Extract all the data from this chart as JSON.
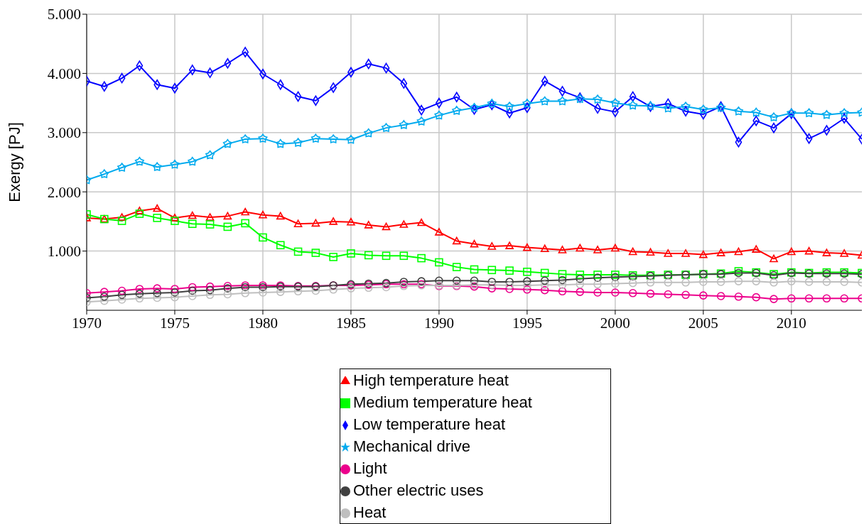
{
  "chart_data": {
    "type": "line",
    "ylabel": "Exergy [PJ]",
    "x": [
      1970,
      1971,
      1972,
      1973,
      1974,
      1975,
      1976,
      1977,
      1978,
      1979,
      1980,
      1981,
      1982,
      1983,
      1984,
      1985,
      1986,
      1987,
      1988,
      1989,
      1990,
      1991,
      1992,
      1993,
      1994,
      1995,
      1996,
      1997,
      1998,
      1999,
      2000,
      2001,
      2002,
      2003,
      2004,
      2005,
      2006,
      2007,
      2008,
      2009,
      2010,
      2011,
      2012,
      2013,
      2014
    ],
    "xlim": [
      1970,
      2014
    ],
    "xticks": [
      1970,
      1975,
      1980,
      1985,
      1990,
      1995,
      2000,
      2005,
      2010
    ],
    "ylim": [
      0,
      5000
    ],
    "yticks": [
      {
        "value": 1000,
        "label": "1.000"
      },
      {
        "value": 2000,
        "label": "2.000"
      },
      {
        "value": 3000,
        "label": "3.000"
      },
      {
        "value": 4000,
        "label": "4.000"
      },
      {
        "value": 5000,
        "label": "5.000"
      }
    ],
    "grid": true,
    "legend": "bottom",
    "line_style": "solid",
    "series": [
      {
        "name": "High temperature heat",
        "color": "#ff0000",
        "marker": "triangle",
        "values": [
          1560,
          1540,
          1570,
          1680,
          1720,
          1560,
          1600,
          1570,
          1590,
          1660,
          1610,
          1590,
          1460,
          1470,
          1500,
          1490,
          1440,
          1410,
          1450,
          1480,
          1320,
          1170,
          1120,
          1080,
          1090,
          1060,
          1040,
          1020,
          1050,
          1020,
          1050,
          990,
          980,
          960,
          960,
          940,
          970,
          990,
          1030,
          870,
          990,
          1000,
          970,
          960,
          930
        ]
      },
      {
        "name": "Medium temperature heat",
        "color": "#00ff00",
        "marker": "square",
        "values": [
          1620,
          1540,
          1510,
          1630,
          1560,
          1510,
          1460,
          1450,
          1410,
          1470,
          1230,
          1100,
          990,
          970,
          900,
          960,
          930,
          920,
          920,
          880,
          810,
          730,
          690,
          680,
          670,
          650,
          630,
          610,
          600,
          600,
          600,
          590,
          590,
          600,
          600,
          610,
          620,
          660,
          640,
          610,
          640,
          630,
          640,
          640,
          630
        ]
      },
      {
        "name": "Low temperature heat",
        "color": "#0000ff",
        "marker": "diamond",
        "values": [
          3870,
          3780,
          3920,
          4130,
          3810,
          3750,
          4060,
          4010,
          4170,
          4360,
          3990,
          3810,
          3610,
          3540,
          3760,
          4020,
          4160,
          4090,
          3830,
          3380,
          3500,
          3600,
          3390,
          3470,
          3330,
          3420,
          3870,
          3700,
          3590,
          3410,
          3350,
          3610,
          3440,
          3490,
          3360,
          3310,
          3440,
          2840,
          3200,
          3080,
          3320,
          2900,
          3040,
          3240,
          2890
        ]
      },
      {
        "name": "Mechanical drive",
        "color": "#00aaee",
        "marker": "star",
        "values": [
          2200,
          2300,
          2410,
          2510,
          2420,
          2460,
          2510,
          2620,
          2810,
          2890,
          2900,
          2810,
          2830,
          2900,
          2890,
          2880,
          2990,
          3080,
          3130,
          3190,
          3290,
          3370,
          3420,
          3490,
          3440,
          3490,
          3530,
          3530,
          3570,
          3560,
          3500,
          3460,
          3450,
          3410,
          3440,
          3390,
          3420,
          3360,
          3340,
          3260,
          3330,
          3330,
          3300,
          3330,
          3340
        ]
      },
      {
        "name": "Light",
        "color": "#ec008c",
        "marker": "circle",
        "values": [
          290,
          310,
          330,
          360,
          370,
          360,
          390,
          400,
          410,
          420,
          420,
          420,
          410,
          410,
          420,
          420,
          430,
          440,
          440,
          440,
          410,
          410,
          400,
          370,
          360,
          350,
          340,
          320,
          310,
          300,
          300,
          290,
          280,
          270,
          260,
          250,
          240,
          230,
          220,
          190,
          200,
          200,
          200,
          200,
          200
        ]
      },
      {
        "name": "Other electric uses",
        "color": "#404040",
        "marker": "circle",
        "values": [
          210,
          230,
          260,
          280,
          290,
          300,
          330,
          340,
          370,
          390,
          390,
          400,
          400,
          400,
          420,
          440,
          450,
          460,
          480,
          490,
          500,
          500,
          500,
          480,
          480,
          490,
          500,
          510,
          530,
          550,
          560,
          570,
          580,
          590,
          600,
          610,
          610,
          630,
          630,
          590,
          630,
          620,
          620,
          620,
          610
        ]
      },
      {
        "name": "Heat",
        "color": "#bfbfbf",
        "marker": "circle",
        "values": [
          140,
          160,
          180,
          200,
          210,
          220,
          240,
          260,
          270,
          290,
          300,
          310,
          320,
          330,
          350,
          370,
          380,
          390,
          410,
          420,
          420,
          420,
          430,
          430,
          420,
          420,
          430,
          430,
          440,
          440,
          450,
          460,
          470,
          470,
          470,
          480,
          480,
          490,
          490,
          470,
          490,
          480,
          480,
          480,
          470
        ]
      }
    ]
  }
}
